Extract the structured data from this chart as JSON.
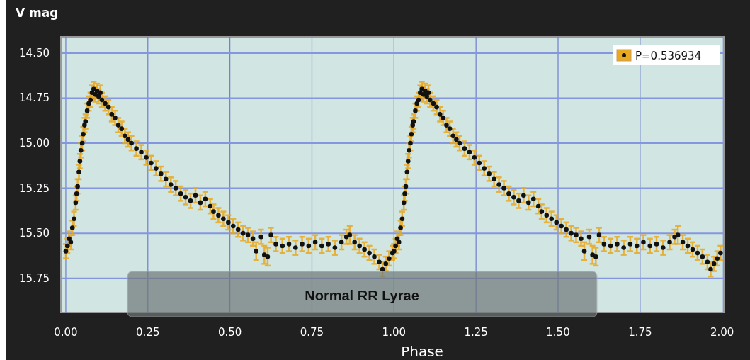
{
  "chart_data": {
    "type": "scatter",
    "ylabel": "V mag",
    "xlabel": "Phase",
    "xlim": [
      -0.015,
      2.005
    ],
    "ylim": [
      15.94,
      14.41
    ],
    "xticks": [
      {
        "value": 0,
        "label": "0.00"
      },
      {
        "value": 0.25,
        "label": "0.25"
      },
      {
        "value": 0.5,
        "label": "0.50"
      },
      {
        "value": 0.75,
        "label": "0.75"
      },
      {
        "value": 1,
        "label": "1.00"
      },
      {
        "value": 1.25,
        "label": "1.25"
      },
      {
        "value": 1.5,
        "label": "1.50"
      },
      {
        "value": 1.75,
        "label": "1.75"
      },
      {
        "value": 2,
        "label": "2.00"
      }
    ],
    "yticks": [
      {
        "value": 14.5,
        "label": "14.50"
      },
      {
        "value": 14.75,
        "label": "14.75"
      },
      {
        "value": 15,
        "label": "15.00"
      },
      {
        "value": 15.25,
        "label": "15.25"
      },
      {
        "value": 15.5,
        "label": "15.50"
      },
      {
        "value": 15.75,
        "label": "15.75"
      }
    ],
    "grid": true,
    "legend": "top right",
    "marker": "circle",
    "annotations": [
      "Normal RR Lyrae"
    ],
    "series": [
      {
        "name": "P=0.536934",
        "color": "#111111",
        "x": [
          0,
          0.005,
          0.01,
          0.015,
          0.02,
          0.025,
          0.03,
          0.033,
          0.036,
          0.04,
          0.043,
          0.046,
          0.05,
          0.053,
          0.057,
          0.06,
          0.065,
          0.07,
          0.075,
          0.08,
          0.085,
          0.09,
          0.095,
          0.1,
          0.105,
          0.11,
          0.12,
          0.13,
          0.14,
          0.15,
          0.16,
          0.17,
          0.18,
          0.19,
          0.2,
          0.215,
          0.23,
          0.245,
          0.26,
          0.275,
          0.29,
          0.305,
          0.32,
          0.335,
          0.35,
          0.365,
          0.38,
          0.395,
          0.41,
          0.425,
          0.44,
          0.45,
          0.465,
          0.48,
          0.495,
          0.51,
          0.525,
          0.54,
          0.555,
          0.57,
          0.58,
          0.595,
          0.605,
          0.615,
          0.625,
          0.64,
          0.66,
          0.68,
          0.7,
          0.72,
          0.74,
          0.76,
          0.78,
          0.8,
          0.82,
          0.84,
          0.855,
          0.865,
          0.88,
          0.895,
          0.91,
          0.925,
          0.94,
          0.955,
          0.965,
          0.975,
          0.985,
          0.995,
          1,
          1.005,
          1.01,
          1.015,
          1.02,
          1.025,
          1.03,
          1.033,
          1.036,
          1.04,
          1.043,
          1.046,
          1.05,
          1.053,
          1.057,
          1.06,
          1.065,
          1.07,
          1.075,
          1.08,
          1.085,
          1.09,
          1.095,
          1.1,
          1.105,
          1.11,
          1.12,
          1.13,
          1.14,
          1.15,
          1.16,
          1.17,
          1.18,
          1.19,
          1.2,
          1.215,
          1.23,
          1.245,
          1.26,
          1.275,
          1.29,
          1.305,
          1.32,
          1.335,
          1.35,
          1.365,
          1.38,
          1.395,
          1.41,
          1.425,
          1.44,
          1.45,
          1.465,
          1.48,
          1.495,
          1.51,
          1.525,
          1.54,
          1.555,
          1.57,
          1.58,
          1.595,
          1.605,
          1.615,
          1.625,
          1.64,
          1.66,
          1.68,
          1.7,
          1.72,
          1.74,
          1.76,
          1.78,
          1.8,
          1.82,
          1.84,
          1.855,
          1.865,
          1.88,
          1.895,
          1.91,
          1.925,
          1.94,
          1.955,
          1.965,
          1.975,
          1.985,
          1.995
        ],
        "values": [
          15.6,
          15.57,
          15.53,
          15.55,
          15.47,
          15.42,
          15.33,
          15.28,
          15.24,
          15.16,
          15.1,
          15.04,
          15,
          14.95,
          14.9,
          14.88,
          14.82,
          14.78,
          14.76,
          14.72,
          14.7,
          14.73,
          14.71,
          14.74,
          14.72,
          14.76,
          14.78,
          14.8,
          14.84,
          14.86,
          14.9,
          14.92,
          14.96,
          14.98,
          15,
          15.03,
          15.05,
          15.08,
          15.11,
          15.14,
          15.17,
          15.2,
          15.23,
          15.25,
          15.28,
          15.3,
          15.32,
          15.29,
          15.33,
          15.31,
          15.35,
          15.38,
          15.4,
          15.42,
          15.44,
          15.46,
          15.48,
          15.5,
          15.51,
          15.53,
          15.6,
          15.52,
          15.62,
          15.63,
          15.51,
          15.56,
          15.57,
          15.56,
          15.58,
          15.56,
          15.57,
          15.55,
          15.57,
          15.56,
          15.58,
          15.55,
          15.52,
          15.51,
          15.55,
          15.57,
          15.59,
          15.61,
          15.63,
          15.66,
          15.7,
          15.67,
          15.64,
          15.61,
          15.6,
          15.57,
          15.53,
          15.55,
          15.47,
          15.42,
          15.33,
          15.28,
          15.24,
          15.16,
          15.1,
          15.04,
          15,
          14.95,
          14.9,
          14.88,
          14.82,
          14.78,
          14.76,
          14.72,
          14.7,
          14.73,
          14.71,
          14.74,
          14.72,
          14.76,
          14.78,
          14.8,
          14.84,
          14.86,
          14.9,
          14.92,
          14.96,
          14.98,
          15,
          15.03,
          15.05,
          15.08,
          15.11,
          15.14,
          15.17,
          15.2,
          15.23,
          15.25,
          15.28,
          15.3,
          15.32,
          15.29,
          15.33,
          15.31,
          15.35,
          15.38,
          15.4,
          15.42,
          15.44,
          15.46,
          15.48,
          15.5,
          15.51,
          15.53,
          15.6,
          15.52,
          15.62,
          15.63,
          15.51,
          15.56,
          15.57,
          15.56,
          15.58,
          15.56,
          15.57,
          15.55,
          15.57,
          15.56,
          15.58,
          15.55,
          15.52,
          15.51,
          15.55,
          15.57,
          15.59,
          15.61,
          15.63,
          15.66,
          15.7,
          15.67,
          15.64,
          15.61
        ],
        "errors": [
          0.04,
          0.04,
          0.04,
          0.04,
          0.04,
          0.04,
          0.04,
          0.04,
          0.04,
          0.04,
          0.04,
          0.04,
          0.04,
          0.04,
          0.04,
          0.04,
          0.04,
          0.04,
          0.04,
          0.04,
          0.04,
          0.04,
          0.04,
          0.04,
          0.04,
          0.04,
          0.04,
          0.04,
          0.04,
          0.04,
          0.04,
          0.04,
          0.04,
          0.04,
          0.04,
          0.04,
          0.04,
          0.04,
          0.04,
          0.04,
          0.04,
          0.04,
          0.04,
          0.04,
          0.04,
          0.04,
          0.04,
          0.04,
          0.04,
          0.04,
          0.04,
          0.04,
          0.04,
          0.04,
          0.04,
          0.04,
          0.04,
          0.04,
          0.04,
          0.04,
          0.05,
          0.04,
          0.05,
          0.05,
          0.04,
          0.04,
          0.04,
          0.04,
          0.04,
          0.04,
          0.04,
          0.04,
          0.04,
          0.04,
          0.04,
          0.04,
          0.04,
          0.05,
          0.04,
          0.04,
          0.04,
          0.04,
          0.04,
          0.04,
          0.04,
          0.04,
          0.04,
          0.04,
          0.04,
          0.04,
          0.04,
          0.04,
          0.04,
          0.04,
          0.04,
          0.04,
          0.04,
          0.04,
          0.04,
          0.04,
          0.04,
          0.04,
          0.04,
          0.04,
          0.04,
          0.04,
          0.04,
          0.04,
          0.04,
          0.04,
          0.04,
          0.04,
          0.04,
          0.04,
          0.04,
          0.04,
          0.04,
          0.04,
          0.04,
          0.04,
          0.04,
          0.04,
          0.04,
          0.04,
          0.04,
          0.04,
          0.04,
          0.04,
          0.04,
          0.04,
          0.04,
          0.04,
          0.04,
          0.04,
          0.04,
          0.04,
          0.04,
          0.04,
          0.04,
          0.04,
          0.04,
          0.04,
          0.04,
          0.04,
          0.04,
          0.04,
          0.04,
          0.04,
          0.05,
          0.04,
          0.05,
          0.05,
          0.04,
          0.04,
          0.04,
          0.04,
          0.04,
          0.04,
          0.04,
          0.04,
          0.04,
          0.04,
          0.04,
          0.04,
          0.04,
          0.05,
          0.04,
          0.04,
          0.04,
          0.04,
          0.04,
          0.04,
          0.04,
          0.04,
          0.04,
          0.04
        ]
      }
    ]
  }
}
